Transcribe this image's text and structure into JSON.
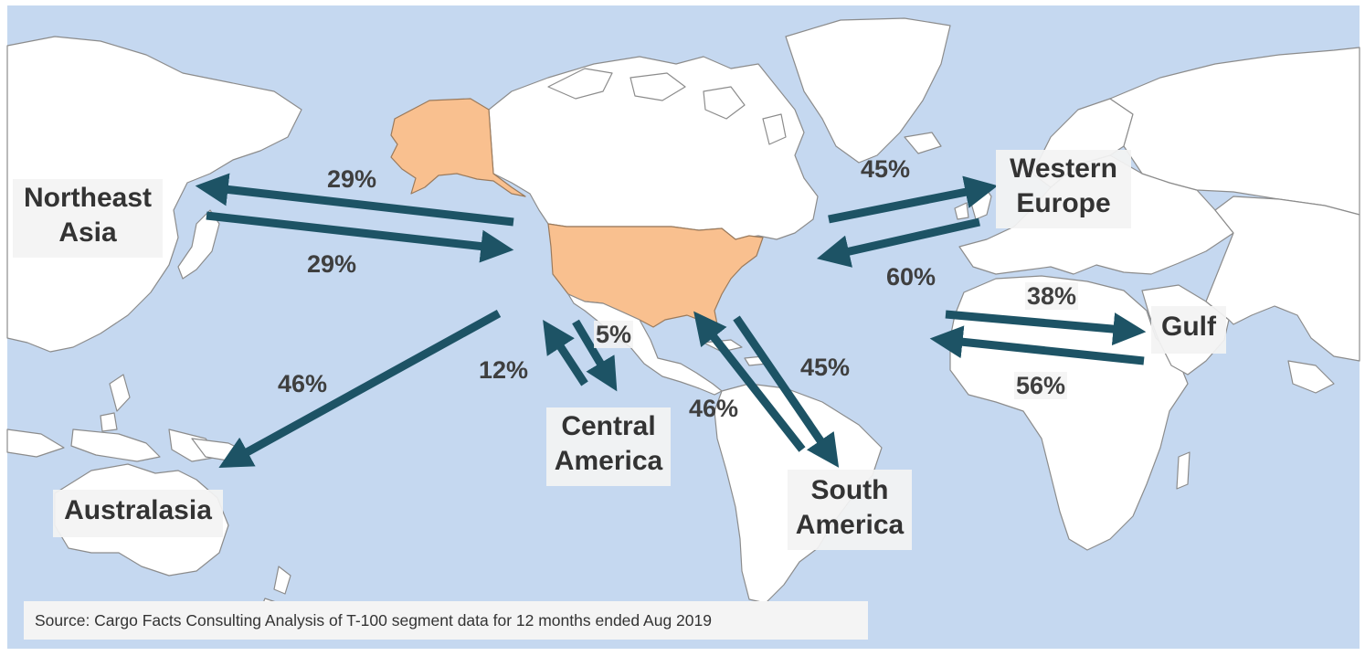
{
  "map": {
    "highlighted_region": "United States",
    "colors": {
      "ocean": "#c5d8f0",
      "land": "#ffffff",
      "borders": "#8c8c8c",
      "highlight": "#f9c08f",
      "arrows": "#1d5365",
      "label_box": "#f3f3f3"
    },
    "regions": {
      "northeast_asia": "Northeast\nAsia",
      "western_europe": "Western\nEurope",
      "gulf": "Gulf",
      "central_america": "Central\nAmerica",
      "south_america": "South\nAmerica",
      "australasia": "Australasia"
    },
    "flows": {
      "ne_asia_outbound": "29%",
      "ne_asia_inbound": "29%",
      "w_europe_outbound": "45%",
      "w_europe_inbound": "60%",
      "gulf_outbound": "38%",
      "gulf_inbound": "56%",
      "central_america_outbound": "5%",
      "central_america_inbound": "12%",
      "south_america_outbound": "45%",
      "south_america_inbound": "46%",
      "australasia_outbound": "46%"
    },
    "source": "Source: Cargo Facts Consulting Analysis of T-100 segment data for 12 months ended Aug 2019"
  }
}
